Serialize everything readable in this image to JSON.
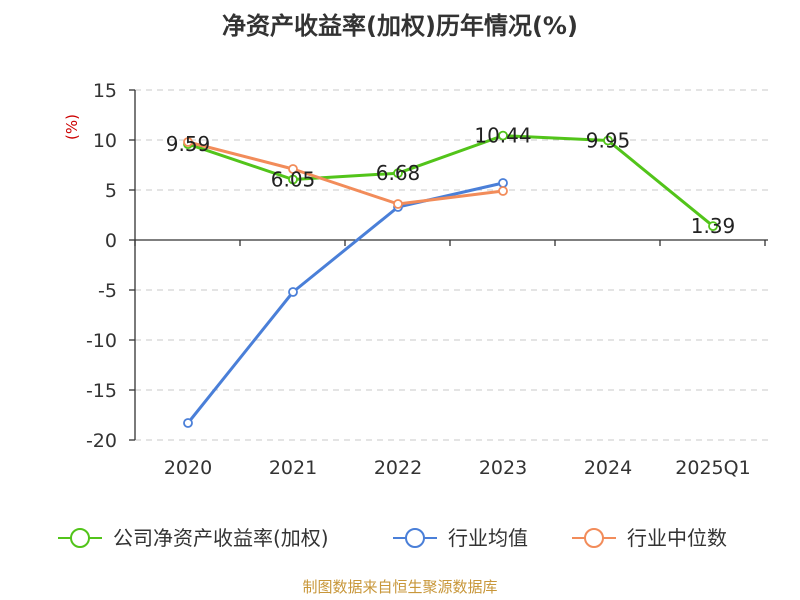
{
  "chart_data": {
    "type": "line",
    "title": "净资产收益率(加权)历年情况(%)",
    "ylabel": "(%)",
    "categories": [
      "2020",
      "2021",
      "2022",
      "2023",
      "2024",
      "2025Q1"
    ],
    "ylim": [
      -20,
      15
    ],
    "yticks": [
      15,
      10,
      5,
      0,
      -5,
      -10,
      -15,
      -20
    ],
    "grid": true,
    "legend_position": "bottom",
    "series": [
      {
        "name": "公司净资产收益率(加权)",
        "color": "#52c41a",
        "values": [
          9.59,
          6.05,
          6.68,
          10.44,
          9.95,
          1.39
        ],
        "labels": [
          "9.59",
          "6.05",
          "6.68",
          "10.44",
          "9.95",
          "1.39"
        ]
      },
      {
        "name": "行业均值",
        "color": "#4a7fd8",
        "values": [
          -18.3,
          -5.2,
          3.3,
          5.7,
          null,
          null
        ]
      },
      {
        "name": "行业中位数",
        "color": "#f28c5a",
        "values": [
          9.8,
          7.1,
          3.6,
          4.9,
          null,
          null
        ]
      }
    ]
  },
  "footer": {
    "source": "制图数据来自恒生聚源数据库"
  }
}
